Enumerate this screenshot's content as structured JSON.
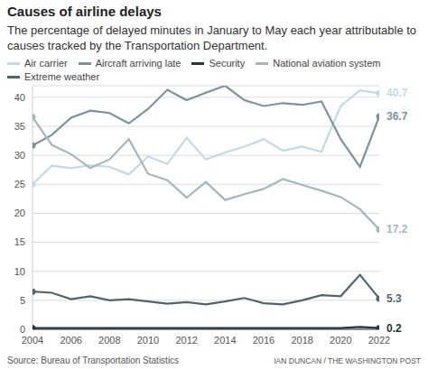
{
  "chart_data": {
    "type": "line",
    "title": "Causes of airline delays",
    "subtitle": "The percentage of delayed minutes in January to May each year attributable to causes tracked by the Transportation Department.",
    "source": "Source: Bureau of Transportation Statistics",
    "credit": "IAN DUNCAN / THE WASHINGTON POST",
    "x": [
      2004,
      2005,
      2006,
      2007,
      2008,
      2009,
      2010,
      2011,
      2012,
      2013,
      2014,
      2015,
      2016,
      2017,
      2018,
      2019,
      2020,
      2021,
      2022
    ],
    "xlim": [
      2004,
      2022
    ],
    "xticks": [
      2004,
      2006,
      2008,
      2010,
      2012,
      2014,
      2016,
      2018,
      2020,
      2022
    ],
    "ylim": [
      0,
      42
    ],
    "yticks": [
      0,
      5,
      10,
      15,
      20,
      25,
      30,
      35,
      40
    ],
    "grid": true,
    "series": [
      {
        "name": "Air carrier",
        "color": "#c3dae3",
        "values": [
          25,
          28.2,
          27.8,
          28.3,
          28,
          26.7,
          29.8,
          28.5,
          33,
          29.3,
          30.5,
          31.5,
          32.8,
          30.8,
          31.5,
          30.6,
          38.5,
          41.2,
          40.7
        ]
      },
      {
        "name": "Aircraft arriving late",
        "color": "#7c939c",
        "values": [
          31.7,
          33.5,
          36.5,
          37.7,
          37.3,
          35.5,
          38,
          41.3,
          39.5,
          40.8,
          42,
          39.5,
          38.5,
          39,
          38.7,
          39.3,
          32.8,
          28,
          36.7
        ]
      },
      {
        "name": "Security",
        "color": "#26363c",
        "values": [
          0.2,
          0.2,
          0.2,
          0.2,
          0.2,
          0.2,
          0.2,
          0.2,
          0.2,
          0.2,
          0.2,
          0.2,
          0.2,
          0.2,
          0.2,
          0.2,
          0.2,
          0.4,
          0.2
        ]
      },
      {
        "name": "National aviation system",
        "color": "#a5b7bd",
        "values": [
          36.6,
          31.8,
          30.2,
          27.8,
          29.3,
          32.8,
          26.8,
          25.7,
          22.7,
          25.4,
          22.3,
          23.3,
          24.2,
          25.9,
          24.9,
          23.9,
          22.8,
          20.7,
          17.2
        ]
      },
      {
        "name": "Extreme weather",
        "color": "#52646b",
        "values": [
          6.5,
          6.3,
          5.2,
          5.7,
          5,
          5.2,
          4.8,
          4.4,
          4.7,
          4.3,
          4.8,
          5.4,
          4.5,
          4.3,
          5,
          5.9,
          5.7,
          9.4,
          5.3
        ]
      }
    ]
  }
}
